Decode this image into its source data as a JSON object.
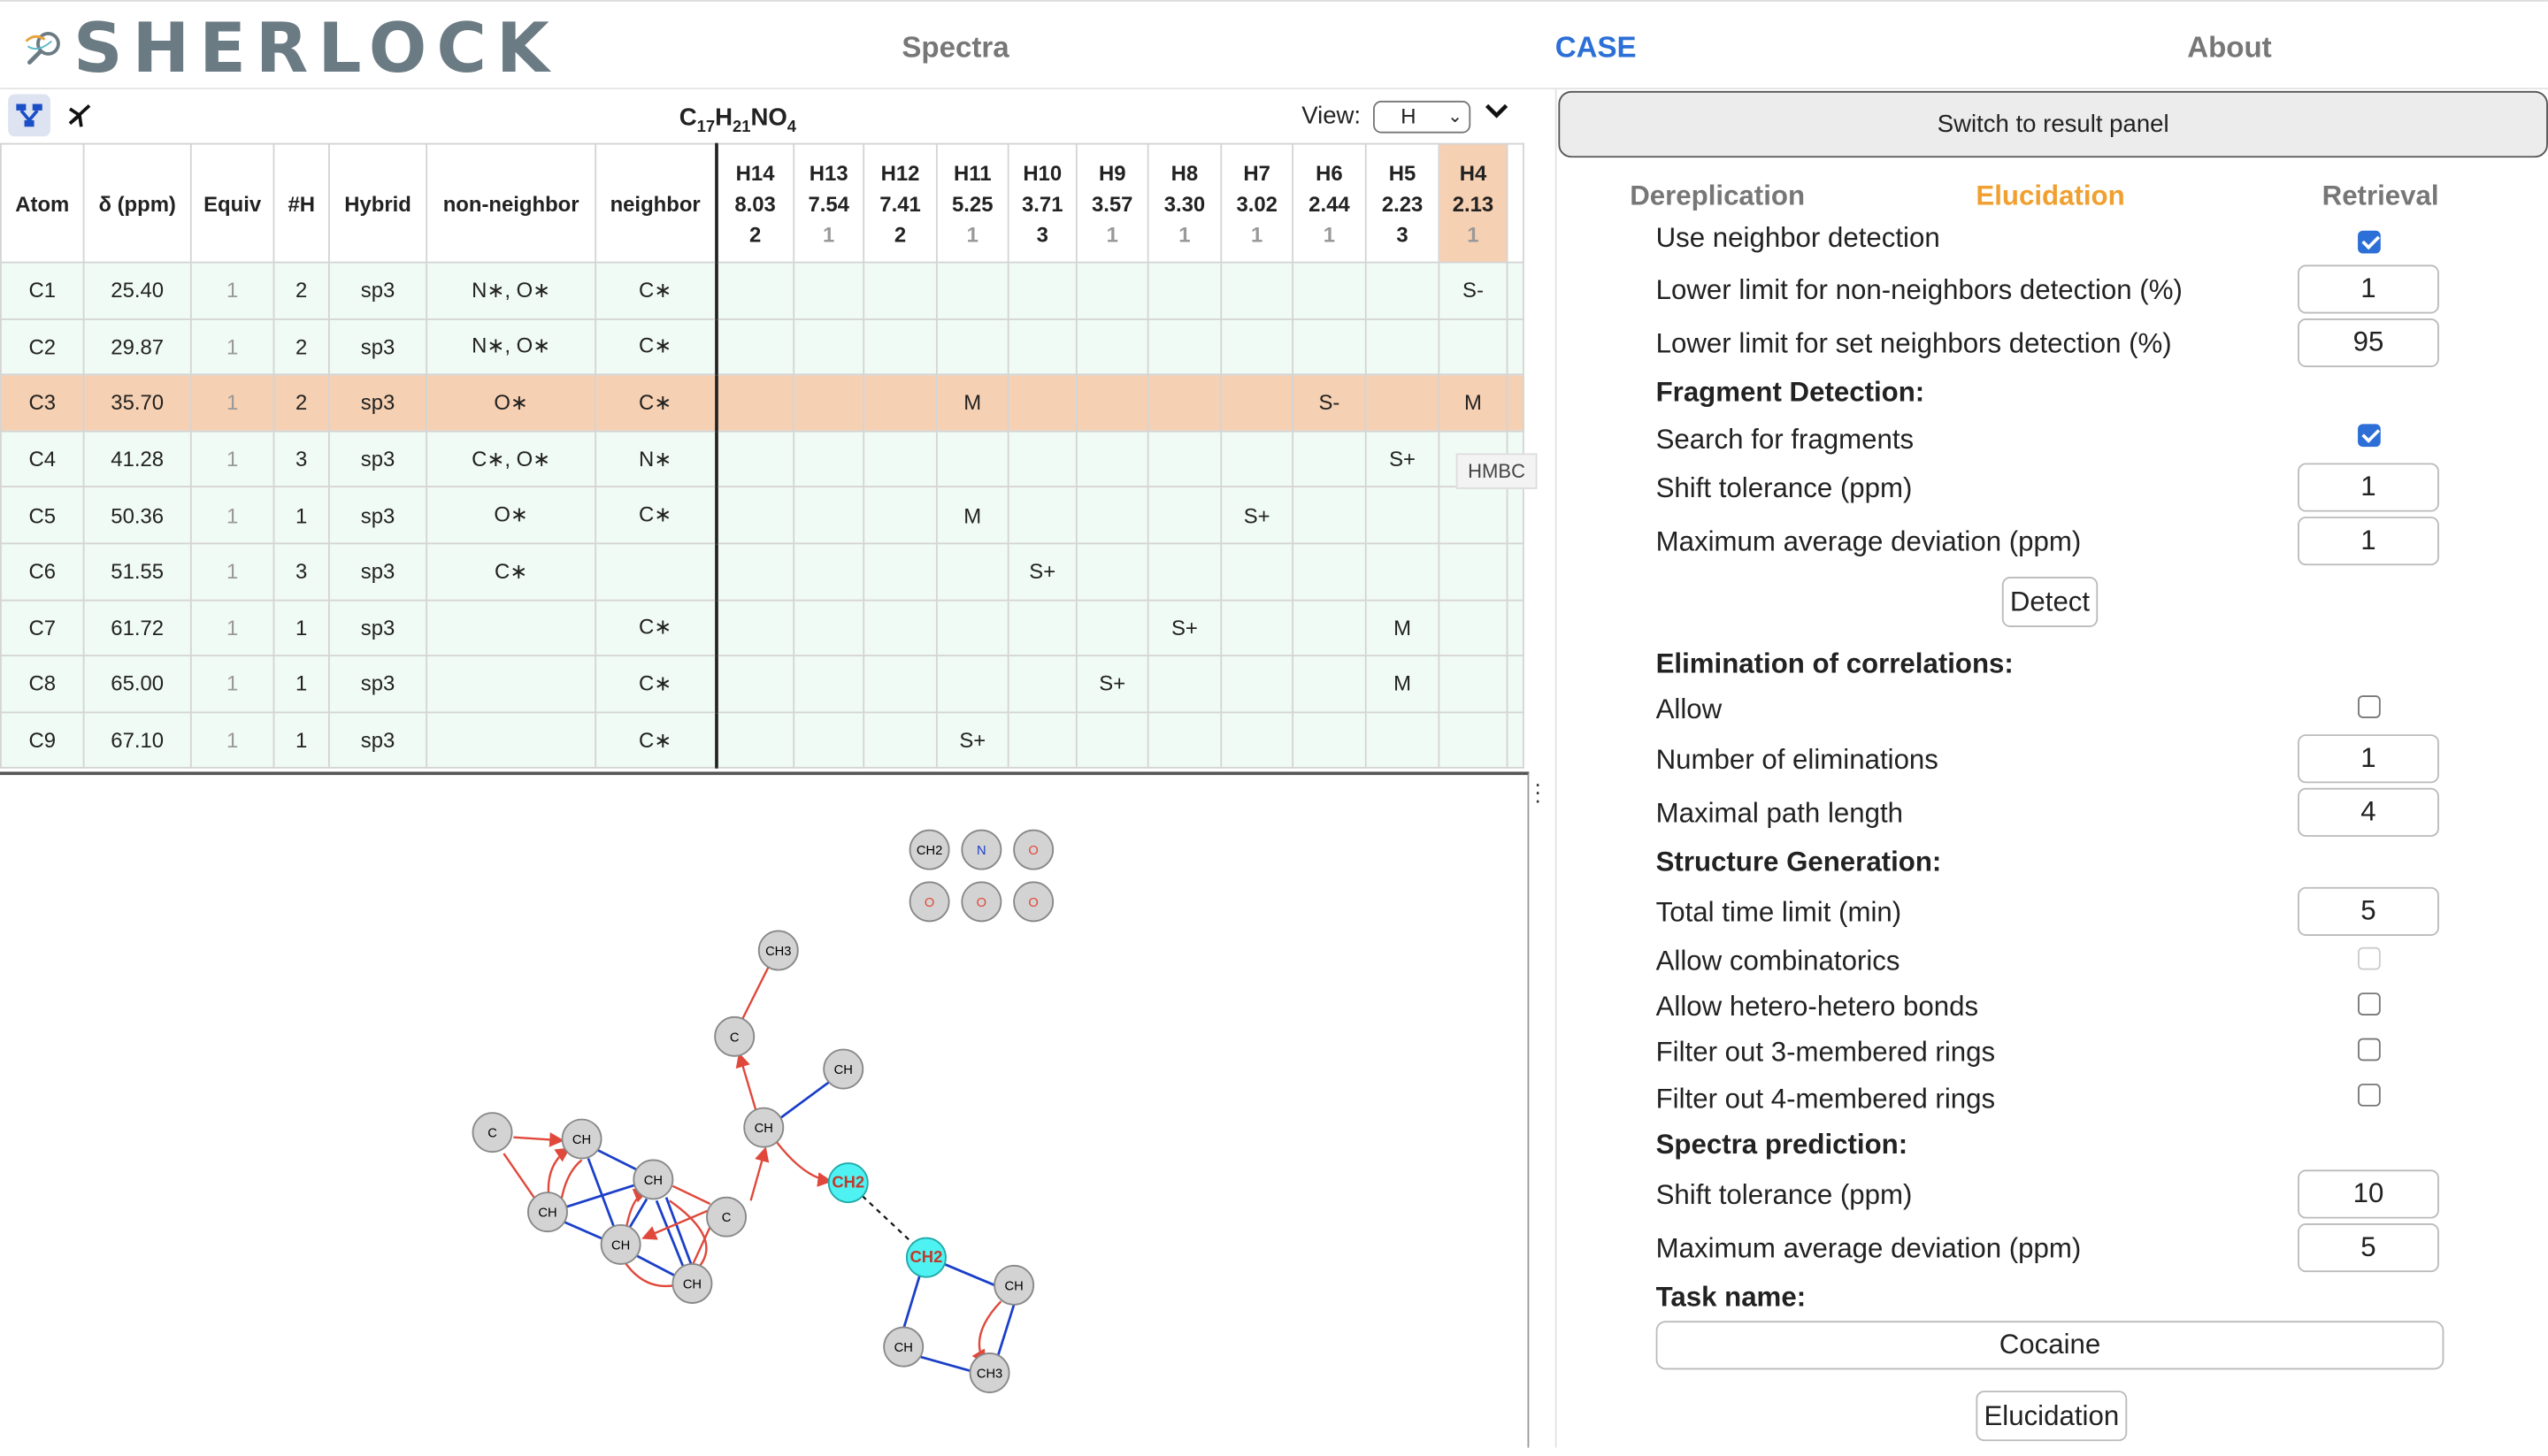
{
  "app": {
    "logo_text": "SHERLOCK"
  },
  "nav": {
    "spectra": "Spectra",
    "case": "CASE",
    "about": "About"
  },
  "toolbar": {
    "formula": {
      "c": "C",
      "c_n": "17",
      "h": "H",
      "h_n": "21",
      "n": "NO",
      "o_n": "4"
    },
    "view_label": "View:",
    "view_value": "H"
  },
  "table": {
    "headers": [
      "Atom",
      "δ (ppm)",
      "Equiv",
      "#H",
      "Hybrid",
      "non-neighbor",
      "neighbor"
    ],
    "h_columns": [
      {
        "label": "H14",
        "shift": "8.03",
        "count": "2"
      },
      {
        "label": "H13",
        "shift": "7.54",
        "count": "1"
      },
      {
        "label": "H12",
        "shift": "7.41",
        "count": "2"
      },
      {
        "label": "H11",
        "shift": "5.25",
        "count": "1"
      },
      {
        "label": "H10",
        "shift": "3.71",
        "count": "3"
      },
      {
        "label": "H9",
        "shift": "3.57",
        "count": "1"
      },
      {
        "label": "H8",
        "shift": "3.30",
        "count": "1"
      },
      {
        "label": "H7",
        "shift": "3.02",
        "count": "1"
      },
      {
        "label": "H6",
        "shift": "2.44",
        "count": "1"
      },
      {
        "label": "H5",
        "shift": "2.23",
        "count": "3"
      },
      {
        "label": "H4",
        "shift": "2.13",
        "count": "1"
      }
    ],
    "rows": [
      {
        "atom": "C1",
        "shift": "25.40",
        "equiv": "1",
        "nh": "2",
        "hybrid": "sp3",
        "nonneighbor": "N∗, O∗",
        "neighbor": "C∗",
        "cells": [
          "",
          "",
          "",
          "",
          "",
          "",
          "",
          "",
          "",
          "",
          "S-"
        ]
      },
      {
        "atom": "C2",
        "shift": "29.87",
        "equiv": "1",
        "nh": "2",
        "hybrid": "sp3",
        "nonneighbor": "N∗, O∗",
        "neighbor": "C∗",
        "cells": [
          "",
          "",
          "",
          "",
          "",
          "",
          "",
          "",
          "",
          "",
          ""
        ]
      },
      {
        "atom": "C3",
        "shift": "35.70",
        "equiv": "1",
        "nh": "2",
        "hybrid": "sp3",
        "nonneighbor": "O∗",
        "neighbor": "C∗",
        "cells": [
          "",
          "",
          "",
          "M",
          "",
          "",
          "",
          "",
          "S-",
          "",
          "M"
        ]
      },
      {
        "atom": "C4",
        "shift": "41.28",
        "equiv": "1",
        "nh": "3",
        "hybrid": "sp3",
        "nonneighbor": "C∗, O∗",
        "neighbor": "N∗",
        "cells": [
          "",
          "",
          "",
          "",
          "",
          "",
          "",
          "",
          "",
          "S+",
          ""
        ]
      },
      {
        "atom": "C5",
        "shift": "50.36",
        "equiv": "1",
        "nh": "1",
        "hybrid": "sp3",
        "nonneighbor": "O∗",
        "neighbor": "C∗",
        "cells": [
          "",
          "",
          "",
          "M",
          "",
          "",
          "",
          "S+",
          "",
          "",
          ""
        ]
      },
      {
        "atom": "C6",
        "shift": "51.55",
        "equiv": "1",
        "nh": "3",
        "hybrid": "sp3",
        "nonneighbor": "C∗",
        "neighbor": "",
        "cells": [
          "",
          "",
          "",
          "",
          "S+",
          "",
          "",
          "",
          "",
          "",
          ""
        ]
      },
      {
        "atom": "C7",
        "shift": "61.72",
        "equiv": "1",
        "nh": "1",
        "hybrid": "sp3",
        "nonneighbor": "",
        "neighbor": "C∗",
        "cells": [
          "",
          "",
          "",
          "",
          "",
          "",
          "S+",
          "",
          "",
          "M",
          ""
        ]
      },
      {
        "atom": "C8",
        "shift": "65.00",
        "equiv": "1",
        "nh": "1",
        "hybrid": "sp3",
        "nonneighbor": "",
        "neighbor": "C∗",
        "cells": [
          "",
          "",
          "",
          "",
          "",
          "S+",
          "",
          "",
          "",
          "M",
          ""
        ]
      },
      {
        "atom": "C9",
        "shift": "67.10",
        "equiv": "1",
        "nh": "1",
        "hybrid": "sp3",
        "nonneighbor": "",
        "neighbor": "C∗",
        "cells": [
          "",
          "",
          "",
          "S+",
          "",
          "",
          "",
          "",
          "",
          "",
          ""
        ]
      }
    ],
    "highlighted_row": "C3",
    "highlighted_column": "H4",
    "tooltip": "HMBC"
  },
  "graph": {
    "free_atoms": [
      "CH2",
      "N",
      "O",
      "O",
      "O",
      "O"
    ],
    "nodes": [
      "CH3",
      "C",
      "CH",
      "CH",
      "CH2",
      "CH2",
      "CH",
      "CH",
      "CH3",
      "C",
      "CH",
      "CH",
      "CH",
      "CH",
      "CH",
      "C"
    ],
    "colors": {
      "node": "#d3d3d3",
      "highlight": "#4ff2f2",
      "hmbc": "#e0483b",
      "cosy": "#1a3fc8",
      "nitrogen": "#1a3fc8",
      "oxygen": "#e0483b"
    }
  },
  "right": {
    "switch_label": "Switch to result panel",
    "tabs": [
      "Dereplication",
      "Elucidation",
      "Retrieval"
    ],
    "active_tab": "Elucidation",
    "partial_row": "Use neighbor detection",
    "rows": {
      "nonneighbor_label": "Lower limit for non-neighbors detection (%)",
      "nonneighbor_value": "1",
      "setneighbor_label": "Lower limit for set neighbors detection (%)",
      "setneighbor_value": "95",
      "fragment_head": "Fragment Detection:",
      "search_fragments": "Search for fragments",
      "shift_tol_label": "Shift tolerance (ppm)",
      "shift_tol_value": "1",
      "max_dev_label": "Maximum average deviation (ppm)",
      "max_dev_value": "1",
      "detect_button": "Detect",
      "elim_head": "Elimination of correlations:",
      "allow": "Allow",
      "num_elim_label": "Number of eliminations",
      "num_elim_value": "1",
      "max_path_label": "Maximal path length",
      "max_path_value": "4",
      "struct_head": "Structure Generation:",
      "time_limit_label": "Total time limit (min)",
      "time_limit_value": "5",
      "allow_comb": "Allow combinatorics",
      "allow_hetero": "Allow hetero-hetero bonds",
      "filter3": "Filter out 3-membered rings",
      "filter4": "Filter out 4-membered rings",
      "pred_head": "Spectra prediction:",
      "pred_shift_label": "Shift tolerance (ppm)",
      "pred_shift_value": "10",
      "pred_dev_label": "Maximum average deviation (ppm)",
      "pred_dev_value": "5",
      "task_head": "Task name:",
      "task_value": "Cocaine",
      "elucidation_button": "Elucidation"
    }
  }
}
